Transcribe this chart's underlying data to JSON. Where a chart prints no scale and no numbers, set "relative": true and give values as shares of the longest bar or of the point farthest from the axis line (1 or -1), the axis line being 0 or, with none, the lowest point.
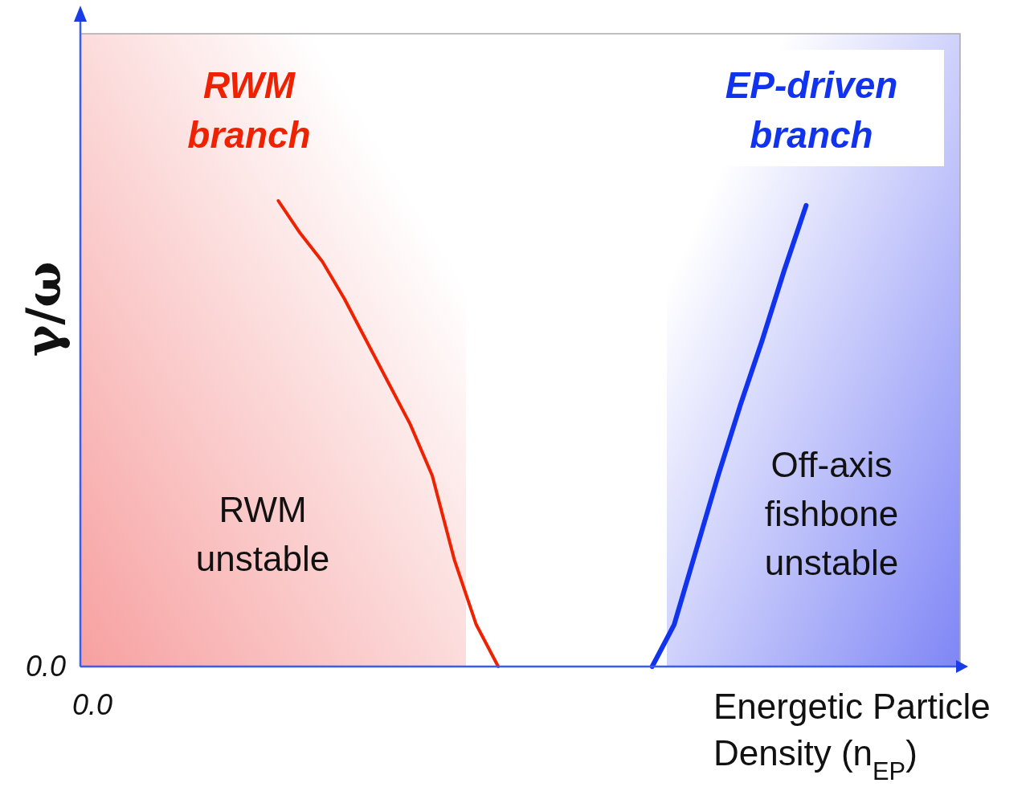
{
  "chart_data": {
    "type": "line",
    "relative": true,
    "xlabel": "Energetic Particle Density  (n$_{EP}$)",
    "ylabel": "γ/ω",
    "categories": [
      null,
      null,
      null,
      null,
      null,
      null,
      null,
      null,
      null,
      null,
      null,
      null,
      null,
      null,
      null,
      null,
      null,
      null,
      null,
      null,
      null,
      null,
      null,
      null,
      null,
      null,
      null,
      null,
      null,
      null,
      null,
      null,
      null,
      null,
      null,
      null,
      null,
      null,
      null,
      null,
      null
    ],
    "series": [
      {
        "name": "RWM branch",
        "color": "#ee2200",
        "values": [
          null,
          null,
          null,
          null,
          null,
          null,
          null,
          null,
          null,
          1,
          0.93,
          0.87,
          0.79,
          0.7,
          0.61,
          0.52,
          0.41,
          0.23,
          0.09,
          0,
          null,
          null,
          null,
          null,
          null,
          null,
          null,
          null,
          null,
          null,
          null,
          null,
          null,
          null,
          null,
          null,
          null,
          null,
          null,
          null,
          null
        ]
      },
      {
        "name": "EP-driven branch",
        "color": "#1133ee",
        "values": [
          null,
          null,
          null,
          null,
          null,
          null,
          null,
          null,
          null,
          null,
          null,
          null,
          null,
          null,
          null,
          null,
          null,
          null,
          null,
          null,
          null,
          null,
          null,
          null,
          null,
          null,
          0,
          0.09,
          0.25,
          0.41,
          0.56,
          0.7,
          0.85,
          0.99,
          null,
          null,
          null,
          null,
          null,
          null,
          null
        ]
      }
    ],
    "annotations": [
      "0.0",
      "0.0",
      "RWM\nunstable",
      "Off-axis\nfishbone\nunstable"
    ]
  }
}
